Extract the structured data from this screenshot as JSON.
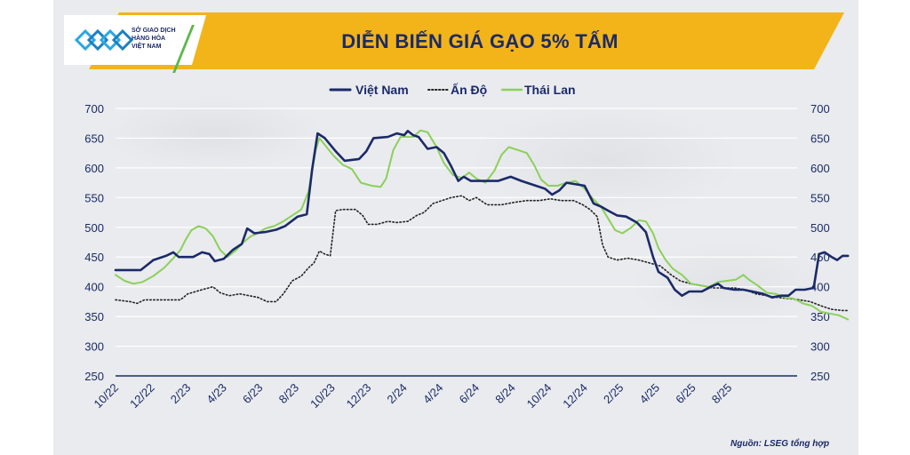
{
  "header": {
    "title": "DIỄN BIẾN GIÁ GẠO 5% TẤM",
    "logo_lines": [
      "SỞ GIAO DỊCH",
      "HÀNG HÓA",
      "VIỆT NAM"
    ]
  },
  "source": "Nguồn: LSEG tổng hợp",
  "colors": {
    "vietnam": "#1b2a68",
    "india": "#222222",
    "thailand": "#8cd05a",
    "banner": "#f2b418",
    "axis": "#1b2a68"
  },
  "chart_data": {
    "type": "line",
    "title": "DIỄN BIẾN GIÁ GẠO 5% TẤM",
    "ylim": [
      250,
      700
    ],
    "yticks": [
      250,
      300,
      350,
      400,
      450,
      500,
      550,
      600,
      650,
      700
    ],
    "y_axis_both_sides": true,
    "grid": true,
    "legend_position": "top-center",
    "x_tick_labels": [
      "10/22",
      "12/22",
      "2/23",
      "4/23",
      "6/23",
      "8/23",
      "10/23",
      "12/23",
      "2/24",
      "4/24",
      "6/24",
      "8/24",
      "10/24",
      "12/24",
      "2/25",
      "4/25",
      "6/25",
      "8/25"
    ],
    "x_range_months": [
      0,
      37
    ],
    "series": [
      {
        "name": "Việt Nam",
        "style": "solid",
        "points": [
          [
            0,
            428
          ],
          [
            0.7,
            428
          ],
          [
            1.4,
            428
          ],
          [
            2.1,
            445
          ],
          [
            2.8,
            452
          ],
          [
            3.2,
            458
          ],
          [
            3.5,
            450
          ],
          [
            4.3,
            450
          ],
          [
            4.8,
            458
          ],
          [
            5.2,
            455
          ],
          [
            5.5,
            443
          ],
          [
            6.0,
            447
          ],
          [
            6.5,
            462
          ],
          [
            7.0,
            472
          ],
          [
            7.3,
            498
          ],
          [
            7.7,
            490
          ],
          [
            8.3,
            492
          ],
          [
            8.9,
            496
          ],
          [
            9.4,
            502
          ],
          [
            10.1,
            518
          ],
          [
            10.6,
            522
          ],
          [
            10.9,
            598
          ],
          [
            11.2,
            658
          ],
          [
            11.6,
            650
          ],
          [
            12.2,
            628
          ],
          [
            12.7,
            612
          ],
          [
            13.5,
            615
          ],
          [
            13.9,
            628
          ],
          [
            14.3,
            650
          ],
          [
            15.1,
            652
          ],
          [
            15.6,
            658
          ],
          [
            16.0,
            655
          ],
          [
            16.2,
            662
          ],
          [
            16.5,
            655
          ],
          [
            16.8,
            652
          ],
          [
            17.3,
            632
          ],
          [
            17.8,
            635
          ],
          [
            18.2,
            625
          ],
          [
            18.6,
            603
          ],
          [
            19.0,
            578
          ],
          [
            19.3,
            585
          ],
          [
            19.7,
            578
          ],
          [
            20.4,
            578
          ],
          [
            21.2,
            578
          ],
          [
            21.9,
            585
          ],
          [
            22.5,
            578
          ],
          [
            23.3,
            570
          ],
          [
            23.8,
            565
          ],
          [
            24.2,
            555
          ],
          [
            24.6,
            562
          ],
          [
            25.0,
            575
          ],
          [
            25.6,
            572
          ],
          [
            26.0,
            570
          ],
          [
            26.5,
            540
          ],
          [
            26.9,
            535
          ],
          [
            27.3,
            528
          ],
          [
            27.8,
            520
          ],
          [
            28.3,
            518
          ],
          [
            28.9,
            508
          ],
          [
            29.4,
            492
          ],
          [
            29.8,
            450
          ],
          [
            30.1,
            425
          ],
          [
            30.6,
            415
          ],
          [
            31.0,
            395
          ],
          [
            31.4,
            385
          ],
          [
            31.8,
            392
          ],
          [
            32.5,
            392
          ],
          [
            33.0,
            400
          ],
          [
            33.4,
            405
          ],
          [
            33.7,
            398
          ],
          [
            34.3,
            395
          ],
          [
            34.8,
            395
          ],
          [
            35.3,
            392
          ],
          [
            35.9,
            388
          ],
          [
            36.4,
            382
          ],
          [
            36.9,
            385
          ],
          [
            37.3,
            385
          ],
          [
            37.7,
            395
          ],
          [
            38.2,
            395
          ],
          [
            38.7,
            398
          ],
          [
            39.0,
            455
          ],
          [
            39.3,
            458
          ],
          [
            39.7,
            450
          ],
          [
            40.0,
            445
          ],
          [
            40.3,
            452
          ],
          [
            40.6,
            452
          ]
        ]
      },
      {
        "name": "Ấn Độ",
        "style": "dotted",
        "points": [
          [
            0,
            378
          ],
          [
            0.8,
            375
          ],
          [
            1.2,
            372
          ],
          [
            1.6,
            378
          ],
          [
            2.4,
            378
          ],
          [
            3.2,
            378
          ],
          [
            3.6,
            378
          ],
          [
            4.0,
            388
          ],
          [
            4.8,
            395
          ],
          [
            5.4,
            400
          ],
          [
            5.8,
            390
          ],
          [
            6.3,
            385
          ],
          [
            6.9,
            388
          ],
          [
            7.4,
            385
          ],
          [
            7.9,
            382
          ],
          [
            8.4,
            375
          ],
          [
            8.9,
            375
          ],
          [
            9.3,
            388
          ],
          [
            9.8,
            410
          ],
          [
            10.3,
            418
          ],
          [
            10.7,
            432
          ],
          [
            11.0,
            440
          ],
          [
            11.3,
            460
          ],
          [
            11.6,
            455
          ],
          [
            11.9,
            452
          ],
          [
            12.2,
            528
          ],
          [
            12.6,
            530
          ],
          [
            13.3,
            530
          ],
          [
            13.7,
            520
          ],
          [
            14.0,
            505
          ],
          [
            14.5,
            505
          ],
          [
            15.1,
            510
          ],
          [
            15.6,
            508
          ],
          [
            16.2,
            510
          ],
          [
            16.7,
            520
          ],
          [
            17.1,
            525
          ],
          [
            17.6,
            540
          ],
          [
            18.1,
            545
          ],
          [
            18.6,
            550
          ],
          [
            19.2,
            553
          ],
          [
            19.6,
            545
          ],
          [
            20.0,
            550
          ],
          [
            20.6,
            538
          ],
          [
            21.4,
            538
          ],
          [
            22.1,
            542
          ],
          [
            22.8,
            545
          ],
          [
            23.5,
            545
          ],
          [
            24.1,
            548
          ],
          [
            24.7,
            545
          ],
          [
            25.4,
            545
          ],
          [
            25.9,
            538
          ],
          [
            26.3,
            530
          ],
          [
            26.7,
            518
          ],
          [
            27.0,
            470
          ],
          [
            27.3,
            450
          ],
          [
            27.8,
            445
          ],
          [
            28.4,
            448
          ],
          [
            29.0,
            445
          ],
          [
            29.6,
            440
          ],
          [
            30.2,
            435
          ],
          [
            30.8,
            420
          ],
          [
            31.3,
            410
          ],
          [
            31.9,
            405
          ],
          [
            32.5,
            402
          ],
          [
            33.1,
            398
          ],
          [
            33.7,
            398
          ],
          [
            34.3,
            398
          ],
          [
            34.9,
            395
          ],
          [
            35.5,
            388
          ],
          [
            36.1,
            385
          ],
          [
            36.7,
            382
          ],
          [
            37.3,
            380
          ],
          [
            37.9,
            378
          ],
          [
            38.5,
            375
          ],
          [
            39.1,
            368
          ],
          [
            39.7,
            362
          ],
          [
            40.3,
            360
          ],
          [
            40.6,
            360
          ]
        ]
      },
      {
        "name": "Thái Lan",
        "style": "solid",
        "points": [
          [
            0,
            420
          ],
          [
            0.5,
            410
          ],
          [
            1.0,
            405
          ],
          [
            1.5,
            408
          ],
          [
            2.1,
            418
          ],
          [
            2.7,
            432
          ],
          [
            3.2,
            448
          ],
          [
            3.6,
            462
          ],
          [
            3.9,
            480
          ],
          [
            4.2,
            495
          ],
          [
            4.6,
            502
          ],
          [
            5.0,
            498
          ],
          [
            5.4,
            485
          ],
          [
            5.8,
            462
          ],
          [
            6.2,
            450
          ],
          [
            6.7,
            462
          ],
          [
            7.1,
            475
          ],
          [
            7.5,
            485
          ],
          [
            7.9,
            490
          ],
          [
            8.3,
            498
          ],
          [
            8.8,
            502
          ],
          [
            9.3,
            510
          ],
          [
            9.8,
            520
          ],
          [
            10.3,
            530
          ],
          [
            10.7,
            560
          ],
          [
            11.1,
            630
          ],
          [
            11.3,
            650
          ],
          [
            11.7,
            635
          ],
          [
            12.1,
            620
          ],
          [
            12.6,
            605
          ],
          [
            13.1,
            598
          ],
          [
            13.6,
            575
          ],
          [
            14.2,
            570
          ],
          [
            14.7,
            568
          ],
          [
            15.0,
            582
          ],
          [
            15.4,
            630
          ],
          [
            15.8,
            652
          ],
          [
            16.1,
            652
          ],
          [
            16.5,
            652
          ],
          [
            16.9,
            663
          ],
          [
            17.3,
            660
          ],
          [
            17.8,
            635
          ],
          [
            18.2,
            608
          ],
          [
            18.7,
            588
          ],
          [
            19.2,
            583
          ],
          [
            19.6,
            592
          ],
          [
            20.0,
            582
          ],
          [
            20.5,
            575
          ],
          [
            21.0,
            595
          ],
          [
            21.4,
            622
          ],
          [
            21.8,
            635
          ],
          [
            22.3,
            630
          ],
          [
            22.8,
            625
          ],
          [
            23.2,
            605
          ],
          [
            23.6,
            580
          ],
          [
            24.0,
            570
          ],
          [
            24.5,
            570
          ],
          [
            25.0,
            575
          ],
          [
            25.5,
            578
          ],
          [
            26.0,
            565
          ],
          [
            26.4,
            550
          ],
          [
            26.9,
            535
          ],
          [
            27.3,
            515
          ],
          [
            27.7,
            495
          ],
          [
            28.1,
            490
          ],
          [
            28.6,
            500
          ],
          [
            29.0,
            512
          ],
          [
            29.4,
            510
          ],
          [
            29.8,
            490
          ],
          [
            30.1,
            465
          ],
          [
            30.5,
            445
          ],
          [
            30.9,
            430
          ],
          [
            31.4,
            420
          ],
          [
            31.9,
            405
          ],
          [
            32.4,
            402
          ],
          [
            32.9,
            400
          ],
          [
            33.4,
            408
          ],
          [
            33.9,
            410
          ],
          [
            34.4,
            412
          ],
          [
            34.8,
            420
          ],
          [
            35.1,
            412
          ],
          [
            35.6,
            402
          ],
          [
            36.1,
            390
          ],
          [
            36.6,
            388
          ],
          [
            37.1,
            382
          ],
          [
            37.6,
            380
          ],
          [
            38.1,
            372
          ],
          [
            38.6,
            368
          ],
          [
            39.1,
            358
          ],
          [
            39.6,
            355
          ],
          [
            40.1,
            352
          ],
          [
            40.6,
            345
          ]
        ]
      }
    ]
  }
}
